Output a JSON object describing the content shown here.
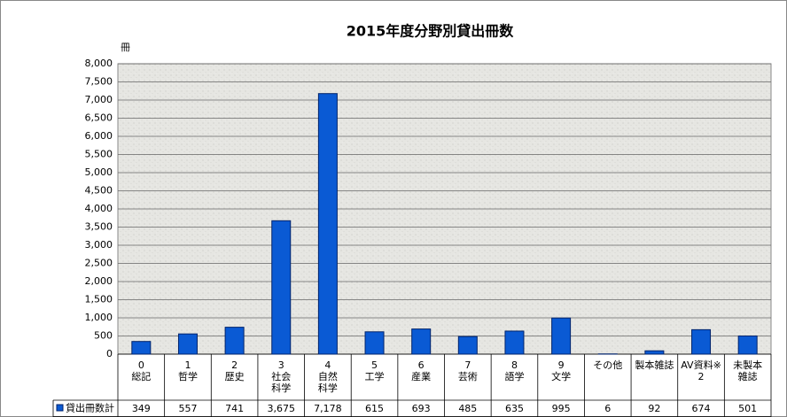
{
  "chart_data": {
    "type": "bar",
    "title": "2015年度分野別貸出冊数",
    "y_label": "冊",
    "categories": [
      [
        "0",
        "総記"
      ],
      [
        "1",
        "哲学"
      ],
      [
        "2",
        "歴史"
      ],
      [
        "3",
        "社会",
        "科学"
      ],
      [
        "4",
        "自然",
        "科学"
      ],
      [
        "5",
        "工学"
      ],
      [
        "6",
        "産業"
      ],
      [
        "7",
        "芸術"
      ],
      [
        "8",
        "語学"
      ],
      [
        "9",
        "文学"
      ],
      [
        "その他"
      ],
      [
        "製本雑誌"
      ],
      [
        "AV資料※",
        "2"
      ],
      [
        "未製本",
        "雑誌"
      ]
    ],
    "series": [
      {
        "name": "貸出冊数計",
        "color": "#0a5ad4",
        "values": [
          349,
          557,
          741,
          3675,
          7178,
          615,
          693,
          485,
          635,
          995,
          6,
          92,
          674,
          501
        ],
        "value_labels": [
          "349",
          "557",
          "741",
          "3,675",
          "7,178",
          "615",
          "693",
          "485",
          "635",
          "995",
          "6",
          "92",
          "674",
          "501"
        ]
      }
    ],
    "ylim": [
      0,
      8000
    ],
    "yticks": [
      0,
      500,
      {
        "value": 1000,
        "label": "1,000"
      },
      {
        "value": 1500,
        "label": "1,500"
      },
      {
        "value": 2000,
        "label": "2,000"
      },
      {
        "value": 2500,
        "label": "2,500"
      },
      {
        "value": 3000,
        "label": "3,000"
      },
      {
        "value": 3500,
        "label": "3,500"
      },
      {
        "value": 4000,
        "label": "4,000"
      },
      {
        "value": 4500,
        "label": "4,500"
      },
      {
        "value": 5000,
        "label": "5,000"
      },
      {
        "value": 5500,
        "label": "5,500"
      },
      {
        "value": 6000,
        "label": "6,000"
      },
      {
        "value": 6500,
        "label": "6,500"
      },
      {
        "value": 7000,
        "label": "7,000"
      },
      {
        "value": 7500,
        "label": "7,500"
      },
      {
        "value": 8000,
        "label": "8,000"
      }
    ],
    "grid": true
  }
}
